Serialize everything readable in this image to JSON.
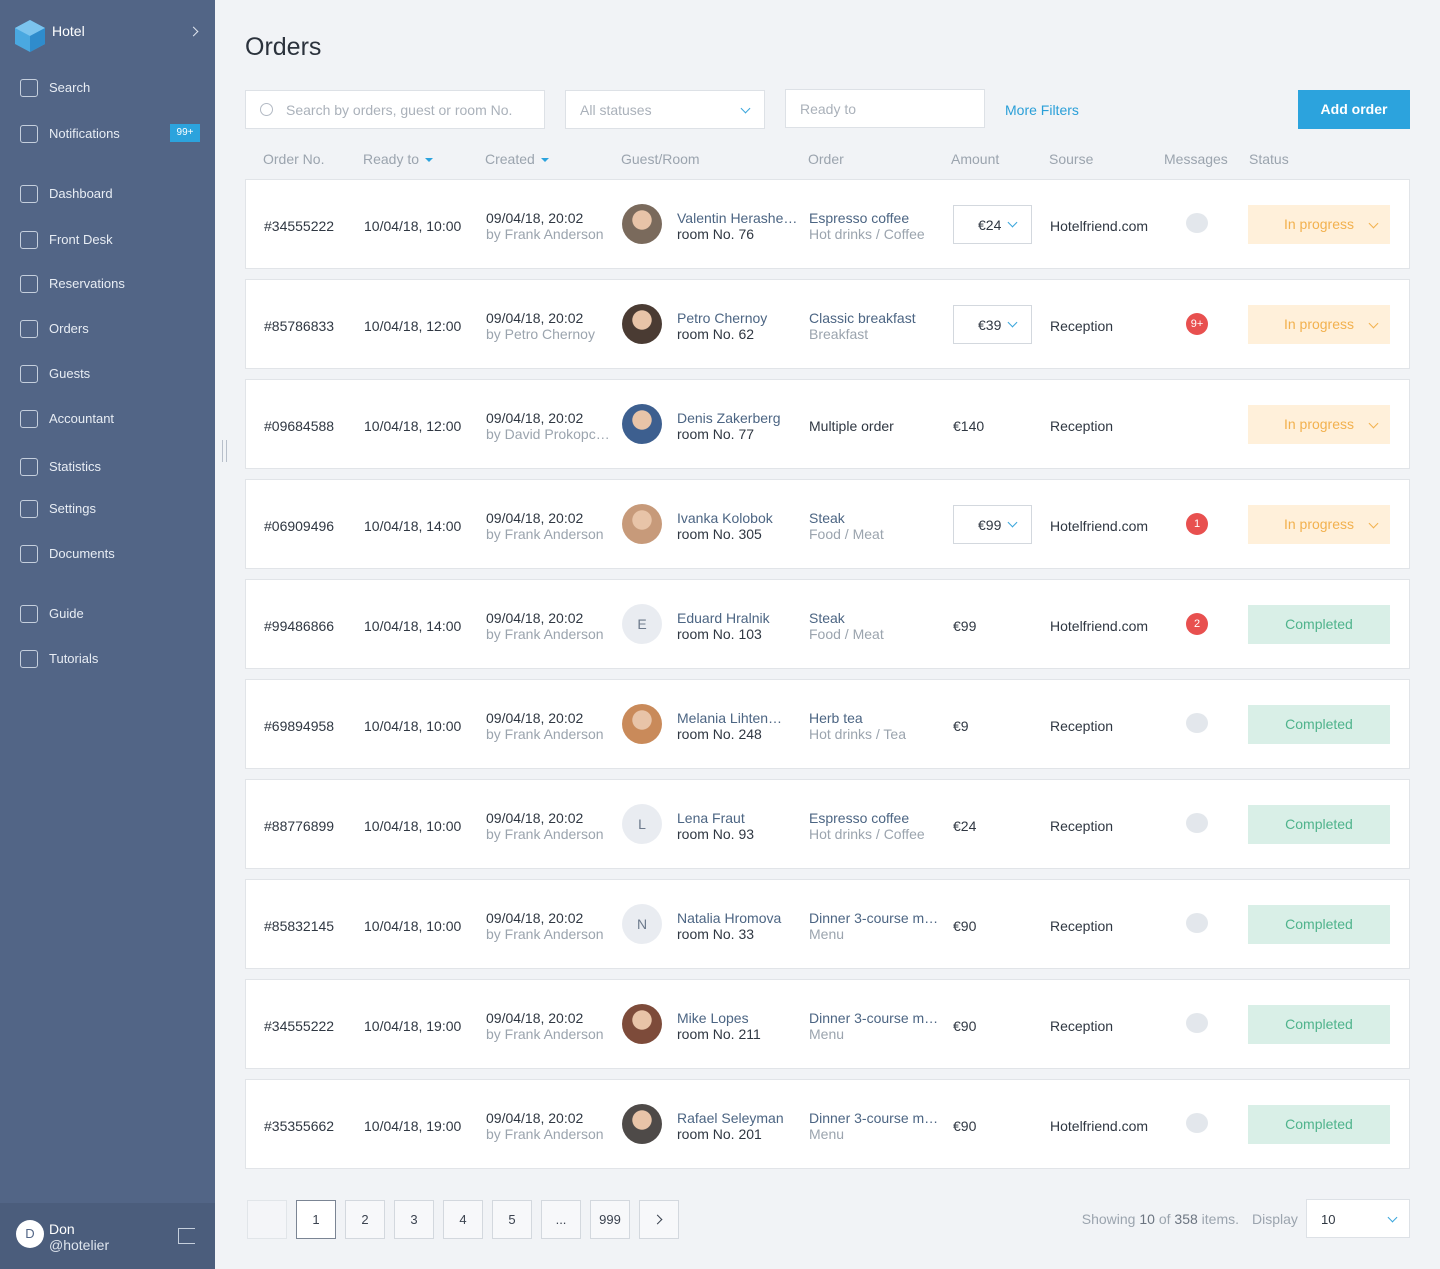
{
  "sidebar": {
    "brand": "Hotel",
    "notifications_badge": "99+",
    "menu": [
      "Search",
      "Notifications",
      "Dashboard",
      "Front Desk",
      "Reservations",
      "Orders",
      "Guests",
      "Accountant",
      "Statistics",
      "Settings",
      "Documents",
      "Guide",
      "Tutorials"
    ],
    "user": {
      "initial": "D",
      "name": "Don",
      "handle": "@hotelier"
    }
  },
  "header": {
    "title": "Orders"
  },
  "filters": {
    "search_placeholder": "Search by orders, guest or room No.",
    "status": "All statuses",
    "ready_placeholder": "Ready to",
    "more": "More Filters",
    "add": "Add order"
  },
  "table": {
    "columns": [
      {
        "label": "Order No."
      },
      {
        "label": "Ready to",
        "sort": true
      },
      {
        "label": "Created",
        "sort": true
      },
      {
        "label": "Guest/Room"
      },
      {
        "label": "Order"
      },
      {
        "label": "Amount"
      },
      {
        "label": "Sourse"
      },
      {
        "label": "Messages"
      },
      {
        "label": "Status"
      }
    ],
    "rows": [
      {
        "order_no": "#34555222",
        "ready": "10/04/18, 10:00",
        "created": "09/04/18, 20:02",
        "created_by": "by Frank Anderson",
        "guest": "Valentin Herashe…",
        "room": "room No. 76",
        "item": "Espresso coffee",
        "category": "Hot drinks / Coffee",
        "amount": "€24",
        "amount_select": true,
        "source": "Hotelfriend.com",
        "status": "In progress",
        "status_color": "#f2b14e",
        "status_bg": "#fff0da"
      },
      {
        "order_no": "#85786833",
        "ready": "10/04/18, 12:00",
        "created": "09/04/18, 20:02",
        "created_by": "by Petro Chernoy",
        "guest": "Petro Chernoy",
        "room": "room No. 62",
        "item": "Classic breakfast",
        "category": "Breakfast",
        "amount": "€39",
        "amount_select": true,
        "source": "Reception",
        "messages": "9+",
        "status": "In progress",
        "status_color": "#f2b14e",
        "status_bg": "#fff0da"
      },
      {
        "order_no": "#09684588",
        "ready": "10/04/18, 12:00",
        "created": "09/04/18, 20:02",
        "created_by": "by David Prokopc…",
        "guest": "Denis Zakerberg",
        "room": "room No. 77",
        "item": "Multiple order",
        "amount": "€140",
        "source": "Reception",
        "chat": false,
        "status": "In progress",
        "status_color": "#f2b14e",
        "status_bg": "#fff0da"
      },
      {
        "order_no": "#06909496",
        "ready": "10/04/18, 14:00",
        "created": "09/04/18, 20:02",
        "created_by": "by Frank Anderson",
        "guest": "Ivanka Kolobok",
        "room": "room No. 305",
        "item": "Steak",
        "category": "Food / Meat",
        "amount": "€99",
        "amount_select": true,
        "source": "Hotelfriend.com",
        "messages": "1",
        "status": "In progress",
        "status_color": "#f2b14e",
        "status_bg": "#fff0da"
      },
      {
        "order_no": "#99486866",
        "ready": "10/04/18, 14:00",
        "created": "09/04/18, 20:02",
        "created_by": "by Frank Anderson",
        "avatar": "E",
        "guest": "Eduard Hralnik",
        "room": "room No. 103",
        "item": "Steak",
        "category": "Food / Meat",
        "amount": "€99",
        "source": "Hotelfriend.com",
        "messages": "2",
        "status": "Completed",
        "status_color": "#4fb38c",
        "status_bg": "#d9efe7"
      },
      {
        "order_no": "#69894958",
        "ready": "10/04/18, 10:00",
        "created": "09/04/18, 20:02",
        "created_by": "by Frank Anderson",
        "guest": "Melania Lihten…",
        "room": "room No. 248",
        "item": "Herb tea",
        "category": "Hot drinks / Tea",
        "amount": "€9",
        "source": "Reception",
        "status": "Completed",
        "status_color": "#4fb38c",
        "status_bg": "#d9efe7"
      },
      {
        "order_no": "#88776899",
        "ready": "10/04/18, 10:00",
        "created": "09/04/18, 20:02",
        "created_by": "by Frank Anderson",
        "avatar": "L",
        "guest": "Lena Fraut",
        "room": "room No. 93",
        "item": "Espresso coffee",
        "category": "Hot drinks / Coffee",
        "amount": "€24",
        "source": "Reception",
        "status": "Completed",
        "status_color": "#4fb38c",
        "status_bg": "#d9efe7"
      },
      {
        "order_no": "#85832145",
        "ready": "10/04/18, 10:00",
        "created": "09/04/18, 20:02",
        "created_by": "by Frank Anderson",
        "avatar": "N",
        "guest": "Natalia Hromova",
        "room": "room No. 33",
        "item": "Dinner 3-course m…",
        "category": "Menu",
        "amount": "€90",
        "source": "Reception",
        "status": "Completed",
        "status_color": "#4fb38c",
        "status_bg": "#d9efe7"
      },
      {
        "order_no": "#34555222",
        "ready": "10/04/18, 19:00",
        "created": "09/04/18, 20:02",
        "created_by": "by Frank Anderson",
        "guest": "Mike Lopes",
        "room": "room No. 211",
        "item": "Dinner 3-course m…",
        "category": "Menu",
        "amount": "€90",
        "source": "Reception",
        "status": "Completed",
        "status_color": "#4fb38c",
        "status_bg": "#d9efe7"
      },
      {
        "order_no": "#35355662",
        "ready": "10/04/18, 19:00",
        "created": "09/04/18, 20:02",
        "created_by": "by Frank Anderson",
        "guest": "Rafael Seleyman",
        "room": "room No. 201",
        "item": "Dinner 3-course m…",
        "category": "Menu",
        "amount": "€90",
        "source": "Hotelfriend.com",
        "status": "Completed",
        "status_color": "#4fb38c",
        "status_bg": "#d9efe7"
      }
    ]
  },
  "pagination": {
    "pages": [
      "1",
      "2",
      "3",
      "4",
      "5",
      "...",
      "999"
    ],
    "current": 0,
    "showing": "Showing",
    "shown": "10",
    "of": "of",
    "total": "358",
    "items": "items.",
    "display_label": "Display",
    "display_value": "10"
  }
}
